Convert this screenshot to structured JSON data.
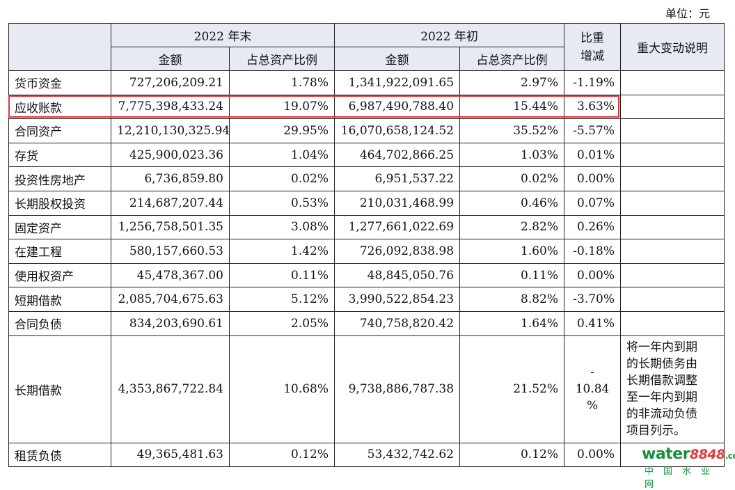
{
  "unit_label": "单位：元",
  "header": {
    "period_end": "2022 年末",
    "period_start": "2022 年初",
    "amount": "金额",
    "ratio": "占总资产比例",
    "change": "比重增减",
    "change_line1": "比重",
    "change_line2": "增减",
    "note": "重大变动说明"
  },
  "rows": [
    {
      "name": "货币资金",
      "end_amount": "727,206,209.21",
      "end_ratio": "1.78%",
      "start_amount": "1,341,922,091.65",
      "start_ratio": "2.97%",
      "change": "-1.19%",
      "note": ""
    },
    {
      "name": "应收账款",
      "end_amount": "7,775,398,433.24",
      "end_ratio": "19.07%",
      "start_amount": "6,987,490,788.40",
      "start_ratio": "15.44%",
      "change": "3.63%",
      "note": ""
    },
    {
      "name": "合同资产",
      "end_amount": "12,210,130,325.94",
      "end_ratio": "29.95%",
      "start_amount": "16,070,658,124.52",
      "start_ratio": "35.52%",
      "change": "-5.57%",
      "note": ""
    },
    {
      "name": "存货",
      "end_amount": "425,900,023.36",
      "end_ratio": "1.04%",
      "start_amount": "464,702,866.25",
      "start_ratio": "1.03%",
      "change": "0.01%",
      "note": ""
    },
    {
      "name": "投资性房地产",
      "end_amount": "6,736,859.80",
      "end_ratio": "0.02%",
      "start_amount": "6,951,537.22",
      "start_ratio": "0.02%",
      "change": "0.00%",
      "note": ""
    },
    {
      "name": "长期股权投资",
      "end_amount": "214,687,207.44",
      "end_ratio": "0.53%",
      "start_amount": "210,031,468.99",
      "start_ratio": "0.46%",
      "change": "0.07%",
      "note": ""
    },
    {
      "name": "固定资产",
      "end_amount": "1,256,758,501.35",
      "end_ratio": "3.08%",
      "start_amount": "1,277,661,022.69",
      "start_ratio": "2.82%",
      "change": "0.26%",
      "note": ""
    },
    {
      "name": "在建工程",
      "end_amount": "580,157,660.53",
      "end_ratio": "1.42%",
      "start_amount": "726,092,838.98",
      "start_ratio": "1.60%",
      "change": "-0.18%",
      "note": ""
    },
    {
      "name": "使用权资产",
      "end_amount": "45,478,367.00",
      "end_ratio": "0.11%",
      "start_amount": "48,845,050.76",
      "start_ratio": "0.11%",
      "change": "0.00%",
      "note": ""
    },
    {
      "name": "短期借款",
      "end_amount": "2,085,704,675.63",
      "end_ratio": "5.12%",
      "start_amount": "3,990,522,854.23",
      "start_ratio": "8.82%",
      "change": "-3.70%",
      "note": ""
    },
    {
      "name": "合同负债",
      "end_amount": "834,203,690.61",
      "end_ratio": "2.05%",
      "start_amount": "740,758,820.42",
      "start_ratio": "1.64%",
      "change": "0.41%",
      "note": ""
    },
    {
      "name": "长期借款",
      "end_amount": "4,353,867,722.84",
      "end_ratio": "10.68%",
      "start_amount": "9,738,886,787.38",
      "start_ratio": "21.52%",
      "change": "-10.84%",
      "change_lines": [
        "-",
        "10.84",
        "%"
      ],
      "note": "将一年内到期的长期债务由长期借款调整至一年内到期的非流动负债项目列示。",
      "note_lines": [
        "将一年内到期",
        "的长期债务由",
        "长期借款调整",
        "至一年内到期",
        "的非流动负债",
        "项目列示。"
      ]
    },
    {
      "name": "租赁负债",
      "end_amount": "49,365,481.63",
      "end_ratio": "0.12%",
      "start_amount": "53,432,742.62",
      "start_ratio": "0.12%",
      "change": "0.00%",
      "note": ""
    }
  ],
  "highlight_row": "应收账款",
  "watermark": {
    "brand_main": "water",
    "brand_num": "8848",
    "brand_tail": ".com",
    "tagline": "中国水业网"
  },
  "colors": {
    "header_bg": "#e7eaf3",
    "highlight": "#e1343a",
    "logo_green": "#1b8e3e",
    "logo_red": "#e23b3b"
  }
}
